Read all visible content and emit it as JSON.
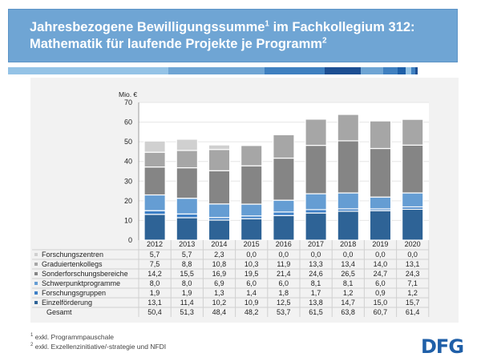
{
  "header": {
    "title_line1": "Jahresbezogene Bewilligungssumme",
    "sup1": "1",
    "title_line1b": " im Fachkollegium 312:",
    "title_line2": "Mathematik für laufende Projekte je Programm",
    "sup2": "2"
  },
  "chart_data": {
    "type": "bar",
    "stacked": true,
    "ylabel": "Mio. €",
    "ylim": [
      0,
      70
    ],
    "yticks": [
      0,
      10,
      20,
      30,
      40,
      50,
      60,
      70
    ],
    "grid": true,
    "categories": [
      "2012",
      "2013",
      "2014",
      "2015",
      "2016",
      "2017",
      "2018",
      "2019",
      "2020"
    ],
    "series": [
      {
        "name": "Einzelförderung",
        "color": "#2E6396",
        "values": [
          13.1,
          11.4,
          10.2,
          10.9,
          12.5,
          13.8,
          14.7,
          15.0,
          15.7
        ]
      },
      {
        "name": "Forschungsgruppen",
        "color": "#3D7FC6",
        "values": [
          1.9,
          1.9,
          1.3,
          1.4,
          1.8,
          1.7,
          1.2,
          0.9,
          1.2
        ]
      },
      {
        "name": "Schwerpunktprogramme",
        "color": "#659DD3",
        "values": [
          8.0,
          8.0,
          6.9,
          6.0,
          6.0,
          8.1,
          8.1,
          6.0,
          7.1
        ]
      },
      {
        "name": "Sonderforschungsbereiche",
        "color": "#858585",
        "values": [
          14.2,
          15.5,
          16.9,
          19.5,
          21.4,
          24.6,
          26.5,
          24.7,
          24.3
        ]
      },
      {
        "name": "Graduiertenkollegs",
        "color": "#A6A6A6",
        "values": [
          7.5,
          8.8,
          10.8,
          10.3,
          11.9,
          13.3,
          13.4,
          14.0,
          13.1
        ]
      },
      {
        "name": "Forschungszentren",
        "color": "#D0D0D0",
        "values": [
          5.7,
          5.7,
          2.3,
          0.0,
          0.0,
          0.0,
          0.0,
          0.0,
          0.0
        ]
      }
    ],
    "table_rows": [
      {
        "name": "Forschungszentren",
        "values": [
          "5,7",
          "5,7",
          "2,3",
          "0,0",
          "0,0",
          "0,0",
          "0,0",
          "0,0",
          "0,0"
        ]
      },
      {
        "name": "Graduiertenkollegs",
        "values": [
          "7,5",
          "8,8",
          "10,8",
          "10,3",
          "11,9",
          "13,3",
          "13,4",
          "14,0",
          "13,1"
        ]
      },
      {
        "name": "Sonderforschungsbereiche",
        "values": [
          "14,2",
          "15,5",
          "16,9",
          "19,5",
          "21,4",
          "24,6",
          "26,5",
          "24,7",
          "24,3"
        ]
      },
      {
        "name": "Schwerpunktprogramme",
        "values": [
          "8,0",
          "8,0",
          "6,9",
          "6,0",
          "6,0",
          "8,1",
          "8,1",
          "6,0",
          "7,1"
        ]
      },
      {
        "name": "Forschungsgruppen",
        "values": [
          "1,9",
          "1,9",
          "1,3",
          "1,4",
          "1,8",
          "1,7",
          "1,2",
          "0,9",
          "1,2"
        ]
      },
      {
        "name": "Einzelförderung",
        "values": [
          "13,1",
          "11,4",
          "10,2",
          "10,9",
          "12,5",
          "13,8",
          "14,7",
          "15,0",
          "15,7"
        ]
      },
      {
        "name": "Gesamt",
        "values": [
          "50,4",
          "51,3",
          "48,4",
          "48,2",
          "53,7",
          "61,5",
          "63,8",
          "60,7",
          "61,4"
        ]
      }
    ]
  },
  "footnotes": [
    {
      "num": "1",
      "text": "exkl. Programmpauschale"
    },
    {
      "num": "2",
      "text": "exkl. Exzellenzinitiative/-strategie und NFDI"
    }
  ],
  "logo": "DFG"
}
